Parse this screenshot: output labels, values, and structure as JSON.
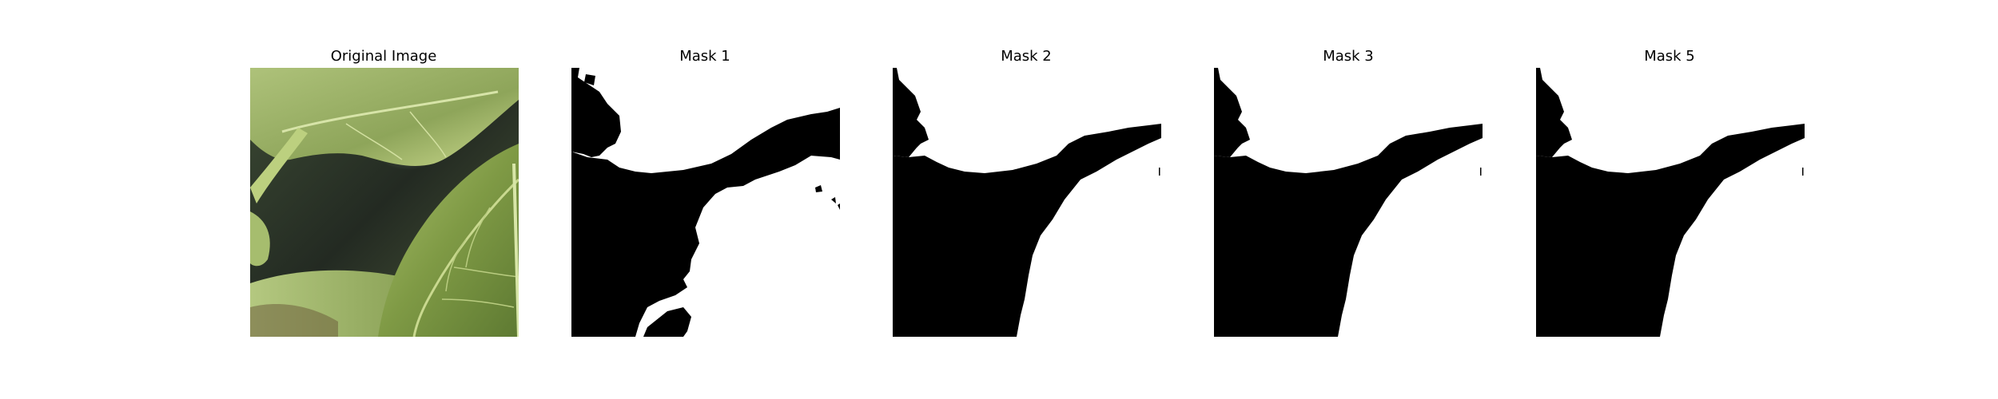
{
  "figure": {
    "panels": [
      {
        "title": "Original Image",
        "kind": "photo",
        "subject": "leaf-closeup"
      },
      {
        "title": "Mask 1",
        "kind": "binary-mask"
      },
      {
        "title": "Mask 2",
        "kind": "binary-mask"
      },
      {
        "title": "Mask 3",
        "kind": "binary-mask"
      },
      {
        "title": "Mask 5",
        "kind": "binary-mask"
      }
    ]
  },
  "colors": {
    "mask_foreground": "#ffffff",
    "mask_background": "#000000",
    "leaf_light": "#c8d89a",
    "leaf_mid": "#93ad5c",
    "leaf_dark": "#5e7a32",
    "shadow": "#2b3328",
    "stem": "#b9cf7e"
  }
}
